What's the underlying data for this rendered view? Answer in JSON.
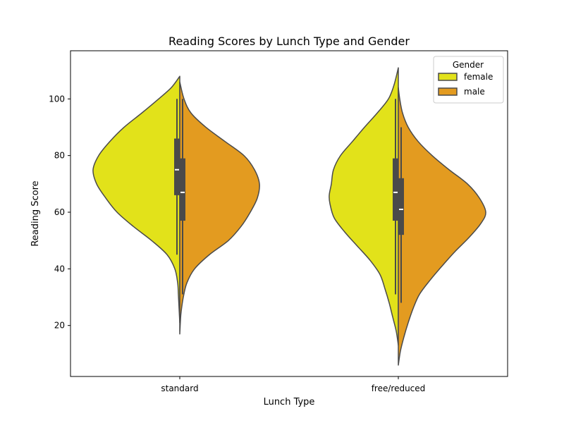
{
  "chart_data": {
    "type": "violin",
    "title": "Reading Scores by Lunch Type and Gender",
    "xlabel": "Lunch Type",
    "ylabel": "Reading Score",
    "categories": [
      "standard",
      "free/reduced"
    ],
    "yticks": [
      20,
      40,
      60,
      80,
      100
    ],
    "ylim": [
      2,
      117
    ],
    "split": true,
    "grid": false,
    "legend": {
      "title": "Gender",
      "placement": "top-right",
      "entries": [
        {
          "name": "female",
          "color": "#e2e21a"
        },
        {
          "name": "male",
          "color": "#e39b20"
        }
      ]
    },
    "series": [
      {
        "name": "female",
        "color": "#e2e21a",
        "groups": [
          {
            "category": "standard",
            "range": [
              21,
              108
            ],
            "whisker": [
              45,
              100
            ],
            "q1": 66,
            "median": 75,
            "q3": 86,
            "density": [
              [
                21,
                0
              ],
              [
                26,
                1
              ],
              [
                31,
                2
              ],
              [
                35,
                3
              ],
              [
                40,
                7
              ],
              [
                45,
                18
              ],
              [
                50,
                40
              ],
              [
                55,
                66
              ],
              [
                60,
                89
              ],
              [
                65,
                105
              ],
              [
                70,
                118
              ],
              [
                75,
                123
              ],
              [
                80,
                115
              ],
              [
                85,
                99
              ],
              [
                90,
                79
              ],
              [
                95,
                54
              ],
              [
                100,
                30
              ],
              [
                104,
                12
              ],
              [
                108,
                0
              ]
            ]
          },
          {
            "category": "free/reduced",
            "range": [
              13,
              111
            ],
            "whisker": [
              31,
              100
            ],
            "q1": 57,
            "median": 67,
            "q3": 79,
            "density": [
              [
                13,
                0
              ],
              [
                18,
                3
              ],
              [
                23,
                8
              ],
              [
                28,
                13
              ],
              [
                33,
                19
              ],
              [
                38,
                26
              ],
              [
                43,
                40
              ],
              [
                48,
                58
              ],
              [
                53,
                76
              ],
              [
                58,
                91
              ],
              [
                63,
                97
              ],
              [
                66,
                98
              ],
              [
                70,
                95
              ],
              [
                75,
                92
              ],
              [
                80,
                82
              ],
              [
                85,
                65
              ],
              [
                90,
                48
              ],
              [
                95,
                30
              ],
              [
                100,
                14
              ],
              [
                105,
                6
              ],
              [
                111,
                0
              ]
            ]
          }
        ]
      },
      {
        "name": "male",
        "color": "#e39b20",
        "groups": [
          {
            "category": "standard",
            "range": [
              17,
              106
            ],
            "whisker": [
              31,
              100
            ],
            "q1": 57,
            "median": 67,
            "q3": 79,
            "density": [
              [
                17,
                0
              ],
              [
                22,
                1
              ],
              [
                25,
                2
              ],
              [
                30,
                5
              ],
              [
                35,
                10
              ],
              [
                40,
                21
              ],
              [
                45,
                42
              ],
              [
                50,
                69
              ],
              [
                55,
                87
              ],
              [
                60,
                100
              ],
              [
                65,
                110
              ],
              [
                70,
                113
              ],
              [
                75,
                106
              ],
              [
                80,
                91
              ],
              [
                85,
                64
              ],
              [
                90,
                37
              ],
              [
                95,
                16
              ],
              [
                100,
                6
              ],
              [
                106,
                0
              ]
            ]
          },
          {
            "category": "free/reduced",
            "range": [
              6,
              104
            ],
            "whisker": [
              28,
              90
            ],
            "q1": 52,
            "median": 61,
            "q3": 72,
            "density": [
              [
                6,
                0
              ],
              [
                11,
                3
              ],
              [
                16,
                8
              ],
              [
                21,
                14
              ],
              [
                26,
                21
              ],
              [
                31,
                30
              ],
              [
                36,
                45
              ],
              [
                41,
                62
              ],
              [
                46,
                80
              ],
              [
                51,
                100
              ],
              [
                56,
                117
              ],
              [
                60,
                124
              ],
              [
                65,
                115
              ],
              [
                70,
                98
              ],
              [
                75,
                72
              ],
              [
                80,
                48
              ],
              [
                85,
                28
              ],
              [
                90,
                14
              ],
              [
                95,
                6
              ],
              [
                100,
                2
              ],
              [
                104,
                0
              ]
            ]
          }
        ]
      }
    ]
  }
}
